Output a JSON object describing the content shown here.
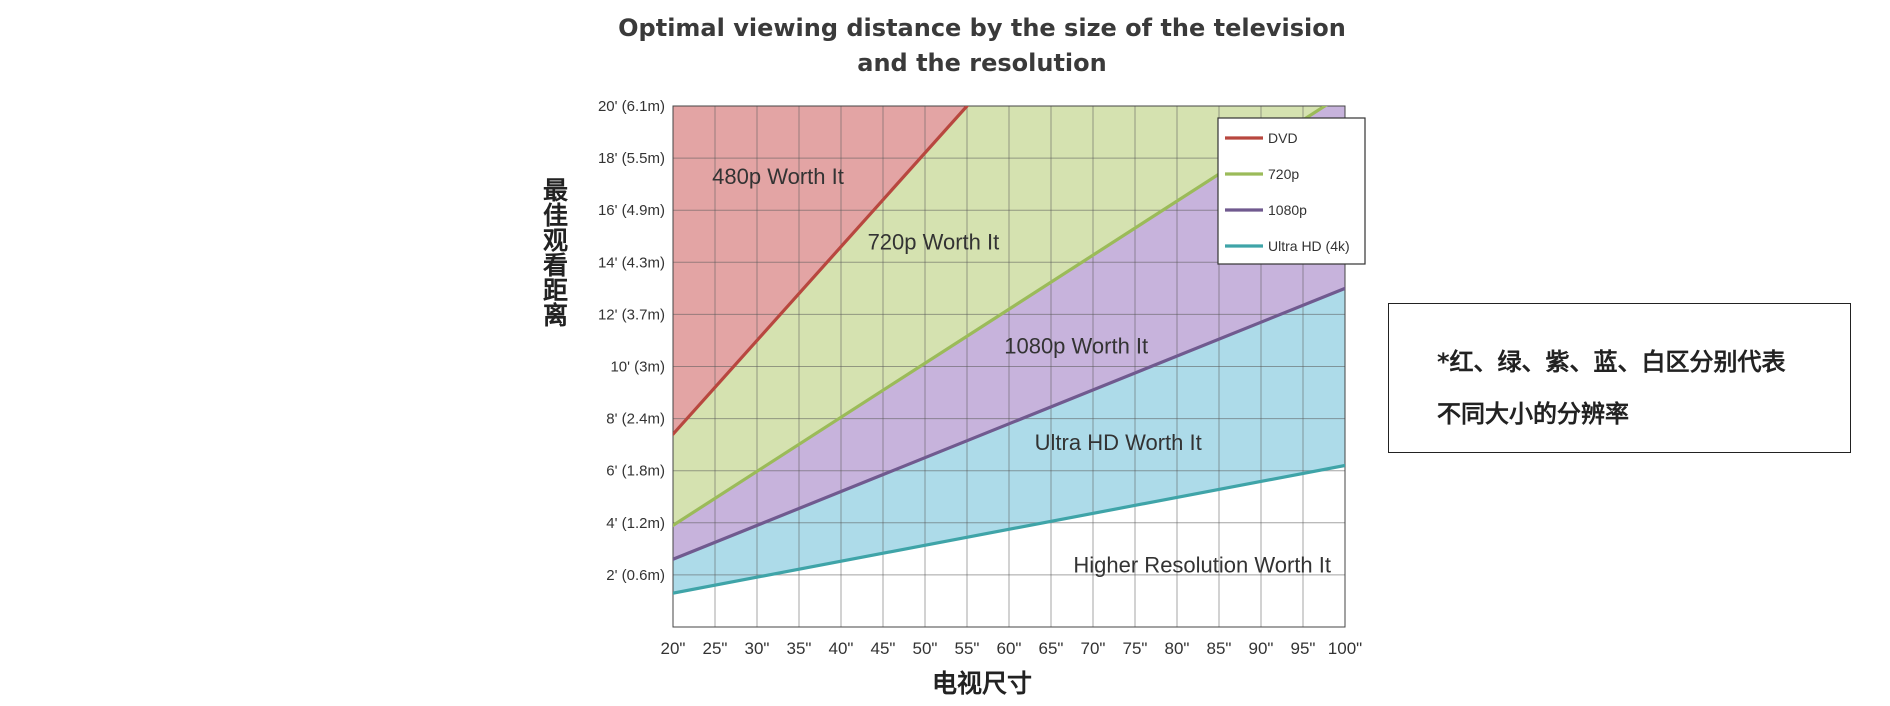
{
  "chart_data": {
    "type": "area",
    "title": [
      "Optimal viewing distance by the size of the television",
      "and the resolution"
    ],
    "xlabel": "电视尺寸",
    "ylabel": "最佳观看距离",
    "x_ticks": [
      "20\"",
      "25\"",
      "30\"",
      "35\"",
      "40\"",
      "45\"",
      "50\"",
      "55\"",
      "60\"",
      "65\"",
      "70\"",
      "75\"",
      "80\"",
      "85\"",
      "90\"",
      "95\"",
      "100\""
    ],
    "y_ticks": [
      "2' (0.6m)",
      "4' (1.2m)",
      "6' (1.8m)",
      "8' (2.4m)",
      "10' (3m)",
      "12' (3.7m)",
      "14' (4.3m)",
      "16' (4.9m)",
      "18' (5.5m)",
      "20' (6.1m)"
    ],
    "xlim": [
      20,
      100
    ],
    "ylim": [
      0,
      20
    ],
    "grid": true,
    "legend_position": "top-right",
    "series": [
      {
        "name": "DVD",
        "color": "#b8473f",
        "x": [
          20,
          55
        ],
        "y": [
          7.4,
          20
        ]
      },
      {
        "name": "720p",
        "color": "#9bbb59",
        "x": [
          20,
          100
        ],
        "y": [
          3.9,
          20.5
        ]
      },
      {
        "name": "1080p",
        "color": "#705a8f",
        "x": [
          20,
          100
        ],
        "y": [
          2.6,
          13
        ]
      },
      {
        "name": "Ultra HD (4k)",
        "color": "#3fa4a8",
        "x": [
          20,
          100
        ],
        "y": [
          1.3,
          6.2
        ]
      }
    ],
    "region_fills": [
      "#e3a4a4",
      "#d5e2b0",
      "#c7b3dc",
      "#addbe9",
      "#ffffff"
    ],
    "region_labels": [
      {
        "text": "480p Worth It",
        "x": 32.5,
        "y": 17.0
      },
      {
        "text": "720p Worth It",
        "x": 51,
        "y": 14.5
      },
      {
        "text": "1080p Worth It",
        "x": 68,
        "y": 10.5
      },
      {
        "text": "Ultra HD Worth It",
        "x": 73,
        "y": 6.8
      },
      {
        "text": "Higher Resolution Worth It",
        "x": 83,
        "y": 2.1
      }
    ]
  },
  "note": {
    "line1": "*红、绿、紫、蓝、白区分别代表",
    "line2": "不同大小的分辨率"
  }
}
